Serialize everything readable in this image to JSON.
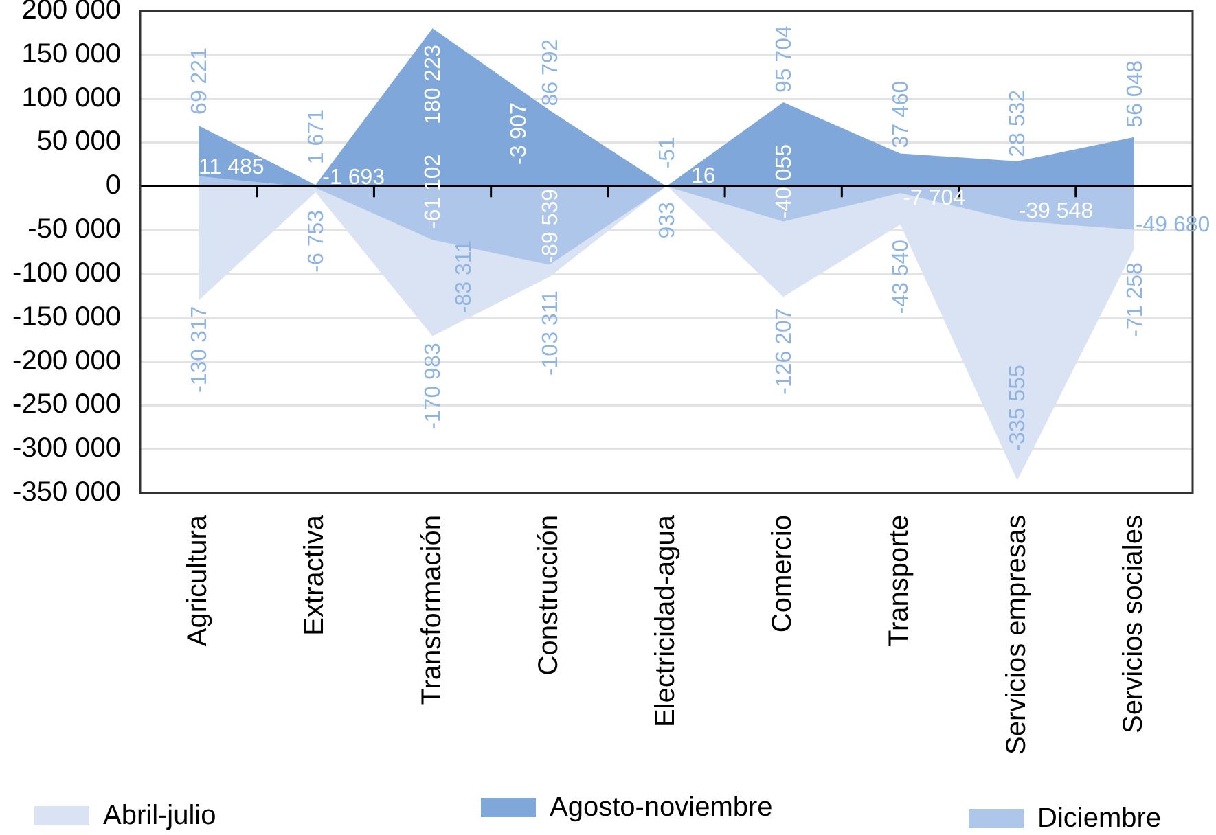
{
  "chart_data": {
    "type": "area",
    "categories": [
      "Agricultura",
      "Extractiva",
      "Transformación",
      "Construcción",
      "Electricidad-agua",
      "Comercio",
      "Transporte",
      "Servicios empresas",
      "Servicios sociales"
    ],
    "series": [
      {
        "name": "Abril-julio",
        "color": "#dae3f3",
        "values": [
          -130317,
          -6753,
          -170983,
          -103311,
          933,
          -126207,
          -43540,
          -335555,
          -71258
        ],
        "value_labels": [
          "-130 317",
          "-6 753",
          "-170 983",
          "-103 311",
          "933",
          "-126 207",
          "-43 540",
          "-335 555",
          "-71 258"
        ]
      },
      {
        "name": "Agosto-noviembre",
        "color": "#7fa7d9",
        "values": [
          69221,
          1671,
          180223,
          86792,
          -51,
          95704,
          37460,
          28532,
          56048
        ],
        "value_labels": [
          "69 221",
          "1 671",
          "180 223",
          "86 792",
          "-51",
          "95 704",
          "37 460",
          "28 532",
          "56 048"
        ]
      },
      {
        "name": "Diciembre",
        "color": "#aec6e9",
        "values": [
          11485,
          -1693,
          -61102,
          -89539,
          16,
          -40055,
          -7704,
          -39548,
          -49680
        ],
        "value_labels": [
          "11 485",
          "-1 693",
          "-61 102",
          "-89 539",
          "16",
          "-40 055",
          "-7 704",
          "-39 548",
          "-49 680"
        ]
      }
    ],
    "ylim": [
      -350000,
      200000
    ],
    "yticks": [
      {
        "value": 200000,
        "label": "200 000"
      },
      {
        "value": 150000,
        "label": "150 000"
      },
      {
        "value": 100000,
        "label": "100 000"
      },
      {
        "value": 50000,
        "label": "50 000"
      },
      0,
      {
        "value": -50000,
        "label": "-50 000"
      },
      {
        "value": -100000,
        "label": "-100 000"
      },
      {
        "value": -150000,
        "label": "-150 000"
      },
      {
        "value": -200000,
        "label": "-200 000"
      },
      {
        "value": -250000,
        "label": "-250 000"
      },
      {
        "value": -300000,
        "label": "-300 000"
      },
      {
        "value": -350000,
        "label": "-350 000"
      }
    ],
    "grid": "y",
    "legend": "bottom",
    "annotations": [
      "-3 907",
      "-83 311"
    ]
  }
}
